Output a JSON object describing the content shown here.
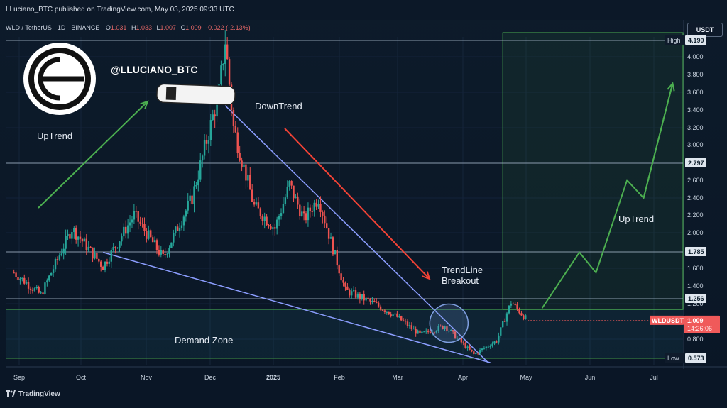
{
  "header": {
    "publisher": "LLuciano_BTC published on TradingView.com, May 03, 2025 09:33 UTC",
    "symbol": "WLD / TetherUS · 1D · BINANCE",
    "ohlc": [
      {
        "label": "O",
        "value": "1.031"
      },
      {
        "label": "H",
        "value": "1.033"
      },
      {
        "label": "L",
        "value": "1.007"
      },
      {
        "label": "C",
        "value": "1.009"
      }
    ],
    "change": "-0.022 (-2.13%)",
    "currency": "USDT"
  },
  "footer": {
    "brand": "TradingView"
  },
  "colors": {
    "background": "#0b1524",
    "up_candle": "#26a69a",
    "down_candle": "#ef5350",
    "uptrend_arrow": "#4caf50",
    "downtrend_arrow": "#f44336",
    "trendline": "#8c9eff",
    "level_line": "#9fb0c2",
    "projection_box": "#4caf50",
    "price_tag": "#f05a5a",
    "text": "#e6ecf4"
  },
  "annotations": {
    "handle": "@LLUCIANO_BTC",
    "uptrend_left": "UpTrend",
    "downtrend": "DownTrend",
    "trendline_breakout_1": "TrendLine",
    "trendline_breakout_2": "Breakout",
    "demand_zone": "Demand Zone",
    "uptrend_right": "UpTrend"
  },
  "price_axis": {
    "ticks": [
      "4.000",
      "3.800",
      "3.600",
      "3.400",
      "3.200",
      "3.000",
      "2.600",
      "2.400",
      "2.200",
      "2.000",
      "1.600",
      "1.400",
      "1.200",
      "0.800"
    ],
    "labels": [
      {
        "text": "High",
        "value": "4.190"
      },
      {
        "text": "",
        "value": "2.797"
      },
      {
        "text": "",
        "value": "1.785"
      },
      {
        "text": "",
        "value": "1.256"
      },
      {
        "text": "Low",
        "value": "0.573"
      }
    ],
    "current_price": {
      "symbol": "WLDUSDT",
      "value": "1.009",
      "countdown": "14:26:06"
    }
  },
  "chart_data": {
    "type": "candlestick",
    "title": "WLD / TetherUS · 1D · BINANCE",
    "x_ticks": [
      "Sep",
      "Oct",
      "Nov",
      "Dec",
      "2025",
      "Feb",
      "Mar",
      "Apr",
      "May",
      "Jun",
      "Jul"
    ],
    "xlim": [
      "2024-08-24",
      "2025-07-17"
    ],
    "ylim": [
      0.5,
      4.25
    ],
    "levels": [
      4.19,
      2.797,
      1.785,
      1.256,
      1.135,
      0.573
    ],
    "key_points": [
      {
        "date": "2024-08-28",
        "close": 1.55
      },
      {
        "date": "2024-09-10",
        "close": 1.3
      },
      {
        "date": "2024-09-25",
        "close": 2.05
      },
      {
        "date": "2024-10-10",
        "close": 1.62
      },
      {
        "date": "2024-10-25",
        "close": 2.2
      },
      {
        "date": "2024-11-08",
        "close": 1.72
      },
      {
        "date": "2024-11-22",
        "close": 2.4
      },
      {
        "date": "2024-12-05",
        "close": 3.6
      },
      {
        "date": "2024-12-08",
        "close": 4.19
      },
      {
        "date": "2024-12-12",
        "close": 3.2
      },
      {
        "date": "2024-12-22",
        "close": 2.3
      },
      {
        "date": "2025-01-01",
        "close": 2.05
      },
      {
        "date": "2025-01-08",
        "close": 2.55
      },
      {
        "date": "2025-01-15",
        "close": 2.15
      },
      {
        "date": "2025-01-22",
        "close": 2.4
      },
      {
        "date": "2025-01-28",
        "close": 1.9
      },
      {
        "date": "2025-02-04",
        "close": 1.35
      },
      {
        "date": "2025-02-18",
        "close": 1.2
      },
      {
        "date": "2025-03-01",
        "close": 1.05
      },
      {
        "date": "2025-03-12",
        "close": 0.85
      },
      {
        "date": "2025-03-24",
        "close": 0.95
      },
      {
        "date": "2025-04-07",
        "close": 0.62
      },
      {
        "date": "2025-04-18",
        "close": 0.78
      },
      {
        "date": "2025-04-25",
        "close": 1.22
      },
      {
        "date": "2025-05-03",
        "close": 1.009
      }
    ],
    "projection_path": [
      {
        "date": "2025-05-10",
        "value": 1.15
      },
      {
        "date": "2025-05-28",
        "value": 1.78
      },
      {
        "date": "2025-06-05",
        "value": 1.55
      },
      {
        "date": "2025-06-20",
        "value": 2.6
      },
      {
        "date": "2025-06-28",
        "value": 2.4
      },
      {
        "date": "2025-07-12",
        "value": 3.7
      }
    ],
    "falling_wedge": {
      "upper": [
        {
          "date": "2024-12-08",
          "value": 3.45
        },
        {
          "date": "2025-04-14",
          "value": 0.52
        }
      ],
      "lower": [
        {
          "date": "2024-10-10",
          "value": 1.78
        },
        {
          "date": "2025-04-15",
          "value": 0.52
        }
      ]
    }
  }
}
